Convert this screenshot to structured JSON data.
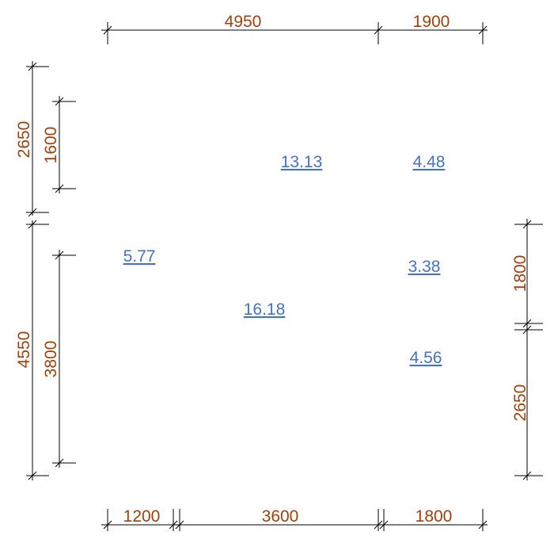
{
  "colors": {
    "dimension_text": "#A0410D",
    "area_text": "#4472C4",
    "line": "#000000"
  },
  "dimensions": {
    "top": [
      "4950",
      "1900"
    ],
    "bottom": [
      "1200",
      "3600",
      "1800"
    ],
    "left_outer": [
      "2650",
      "4550"
    ],
    "left_inner": [
      "1600",
      "3800"
    ],
    "right": [
      "1800",
      "2650"
    ]
  },
  "areas": [
    "13.13",
    "4.48",
    "5.77",
    "3.38",
    "16.18",
    "4.56"
  ]
}
